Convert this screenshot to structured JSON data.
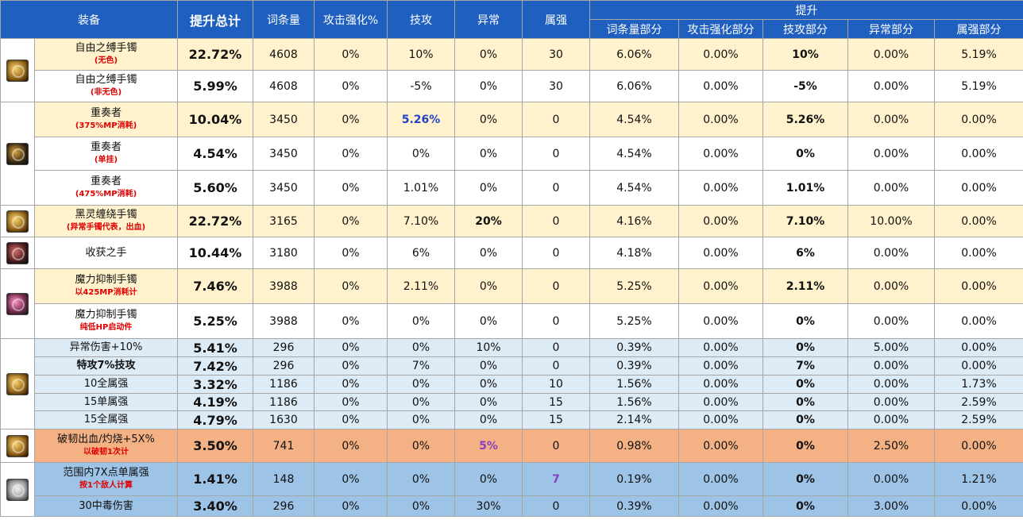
{
  "headers": {
    "equipment": "装备",
    "total": "提升总计",
    "entry": "词条量",
    "atk_boost": "攻击强化%",
    "skill_atk": "技攻",
    "abnormal": "异常",
    "element": "属强",
    "boost": "提升",
    "entry_part": "词条量部分",
    "atk_part": "攻击强化部分",
    "skill_part": "技攻部分",
    "abnormal_part": "异常部分",
    "element_part": "属强部分"
  },
  "icons": {
    "g1": "gold-bracelet-icon",
    "g2": "dark-bracelet-icon",
    "g3": "gold-bracelet-icon",
    "g4": "red-gauntlet-icon",
    "g5": "pink-bracelet-icon",
    "g6": "gold-ring-icon",
    "g7": "gold-ring-icon",
    "g8": "fox-mask-icon"
  },
  "colors": {
    "cream": "#fff2cc",
    "white": "#ffffff",
    "lightblue": "#ddebf7",
    "orange": "#f4b183",
    "midblue": "#9dc3e6",
    "header": "#1f5fbf"
  },
  "rows": [
    {
      "name": "自由之缚手镯",
      "sub": "(无色)",
      "total": "22.72%",
      "entry": "4608",
      "atk": "0%",
      "skill": "10%",
      "abn": "0%",
      "elem": "30",
      "ep": "6.06%",
      "ap": "0.00%",
      "sp": "10%",
      "abp": "0.00%",
      "elp": "5.19%"
    },
    {
      "name": "自由之缚手镯",
      "sub": "(非无色)",
      "total": "5.99%",
      "entry": "4608",
      "atk": "0%",
      "skill": "-5%",
      "abn": "0%",
      "elem": "30",
      "ep": "6.06%",
      "ap": "0.00%",
      "sp": "-5%",
      "abp": "0.00%",
      "elp": "5.19%"
    },
    {
      "name": "重奏者",
      "sub": "(375%MP消耗)",
      "total": "10.04%",
      "entry": "3450",
      "atk": "0%",
      "skill": "5.26%",
      "abn": "0%",
      "elem": "0",
      "ep": "4.54%",
      "ap": "0.00%",
      "sp": "5.26%",
      "abp": "0.00%",
      "elp": "0.00%"
    },
    {
      "name": "重奏者",
      "sub": "(单挂)",
      "total": "4.54%",
      "entry": "3450",
      "atk": "0%",
      "skill": "0%",
      "abn": "0%",
      "elem": "0",
      "ep": "4.54%",
      "ap": "0.00%",
      "sp": "0%",
      "abp": "0.00%",
      "elp": "0.00%"
    },
    {
      "name": "重奏者",
      "sub": "(475%MP消耗)",
      "total": "5.60%",
      "entry": "3450",
      "atk": "0%",
      "skill": "1.01%",
      "abn": "0%",
      "elem": "0",
      "ep": "4.54%",
      "ap": "0.00%",
      "sp": "1.01%",
      "abp": "0.00%",
      "elp": "0.00%"
    },
    {
      "name": "黑灵缠绕手镯",
      "sub": "(异常手镯代表，出血)",
      "total": "22.72%",
      "entry": "3165",
      "atk": "0%",
      "skill": "7.10%",
      "abn": "20%",
      "elem": "0",
      "ep": "4.16%",
      "ap": "0.00%",
      "sp": "7.10%",
      "abp": "10.00%",
      "elp": "0.00%"
    },
    {
      "name": "收获之手",
      "sub": "",
      "total": "10.44%",
      "entry": "3180",
      "atk": "0%",
      "skill": "6%",
      "abn": "0%",
      "elem": "0",
      "ep": "4.18%",
      "ap": "0.00%",
      "sp": "6%",
      "abp": "0.00%",
      "elp": "0.00%"
    },
    {
      "name": "魔力抑制手镯",
      "sub": "以425MP消耗计",
      "total": "7.46%",
      "entry": "3988",
      "atk": "0%",
      "skill": "2.11%",
      "abn": "0%",
      "elem": "0",
      "ep": "5.25%",
      "ap": "0.00%",
      "sp": "2.11%",
      "abp": "0.00%",
      "elp": "0.00%"
    },
    {
      "name": "魔力抑制手镯",
      "sub": "纯低HP启动件",
      "total": "5.25%",
      "entry": "3988",
      "atk": "0%",
      "skill": "0%",
      "abn": "0%",
      "elem": "0",
      "ep": "5.25%",
      "ap": "0.00%",
      "sp": "0%",
      "abp": "0.00%",
      "elp": "0.00%"
    },
    {
      "name": "异常伤害+10%",
      "sub": "",
      "total": "5.41%",
      "entry": "296",
      "atk": "0%",
      "skill": "0%",
      "abn": "10%",
      "elem": "0",
      "ep": "0.39%",
      "ap": "0.00%",
      "sp": "0%",
      "abp": "5.00%",
      "elp": "0.00%"
    },
    {
      "name": "特攻7%技攻",
      "sub": "",
      "total": "7.42%",
      "entry": "296",
      "atk": "0%",
      "skill": "7%",
      "abn": "0%",
      "elem": "0",
      "ep": "0.39%",
      "ap": "0.00%",
      "sp": "7%",
      "abp": "0.00%",
      "elp": "0.00%"
    },
    {
      "name": "10全属强",
      "sub": "",
      "total": "3.32%",
      "entry": "1186",
      "atk": "0%",
      "skill": "0%",
      "abn": "0%",
      "elem": "10",
      "ep": "1.56%",
      "ap": "0.00%",
      "sp": "0%",
      "abp": "0.00%",
      "elp": "1.73%"
    },
    {
      "name": "15单属强",
      "sub": "",
      "total": "4.19%",
      "entry": "1186",
      "atk": "0%",
      "skill": "0%",
      "abn": "0%",
      "elem": "15",
      "ep": "1.56%",
      "ap": "0.00%",
      "sp": "0%",
      "abp": "0.00%",
      "elp": "2.59%"
    },
    {
      "name": "15全属强",
      "sub": "",
      "total": "4.79%",
      "entry": "1630",
      "atk": "0%",
      "skill": "0%",
      "abn": "0%",
      "elem": "15",
      "ep": "2.14%",
      "ap": "0.00%",
      "sp": "0%",
      "abp": "0.00%",
      "elp": "2.59%"
    },
    {
      "name": "破韧出血/灼烧+5X%",
      "sub": "以破韧1次计",
      "total": "3.50%",
      "entry": "741",
      "atk": "0%",
      "skill": "0%",
      "abn": "5%",
      "elem": "0",
      "ep": "0.98%",
      "ap": "0.00%",
      "sp": "0%",
      "abp": "2.50%",
      "elp": "0.00%"
    },
    {
      "name": "范围内7X点单属强",
      "sub": "按1个敌人计算",
      "total": "1.41%",
      "entry": "148",
      "atk": "0%",
      "skill": "0%",
      "abn": "0%",
      "elem": "7",
      "ep": "0.19%",
      "ap": "0.00%",
      "sp": "0%",
      "abp": "0.00%",
      "elp": "1.21%"
    },
    {
      "name": "30中毒伤害",
      "sub": "",
      "total": "3.40%",
      "entry": "296",
      "atk": "0%",
      "skill": "0%",
      "abn": "30%",
      "elem": "0",
      "ep": "0.39%",
      "ap": "0.00%",
      "sp": "0%",
      "abp": "3.00%",
      "elp": "0.00%"
    }
  ]
}
